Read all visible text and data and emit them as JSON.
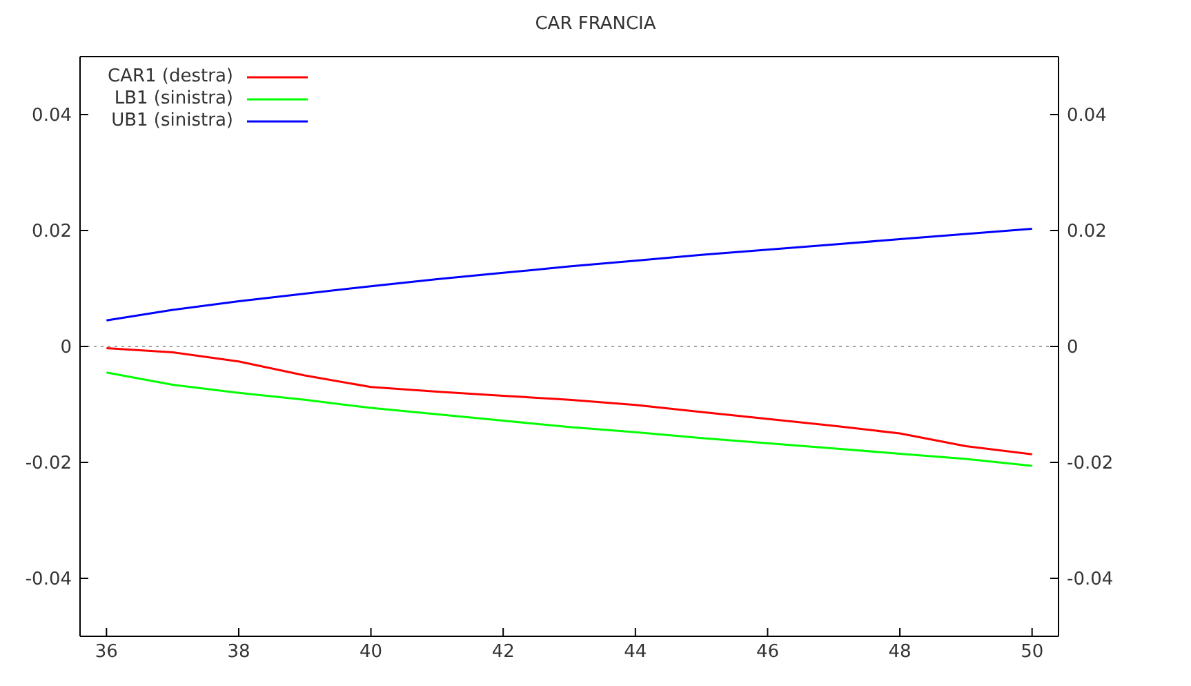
{
  "chart_data": {
    "type": "line",
    "title": "CAR FRANCIA",
    "x": [
      36,
      37,
      38,
      39,
      40,
      41,
      42,
      43,
      44,
      45,
      46,
      47,
      48,
      49,
      50
    ],
    "series": [
      {
        "name": "CAR1 (destra)",
        "color": "#ff0000",
        "values": [
          -0.0003,
          -0.001,
          -0.0026,
          -0.005,
          -0.007,
          -0.0078,
          -0.0085,
          -0.0092,
          -0.0101,
          -0.0113,
          -0.0125,
          -0.0137,
          -0.015,
          -0.0172,
          -0.0186
        ]
      },
      {
        "name": "LB1 (sinistra)",
        "color": "#00ff00",
        "values": [
          -0.0045,
          -0.0066,
          -0.008,
          -0.0092,
          -0.0106,
          -0.0117,
          -0.0128,
          -0.0139,
          -0.0148,
          -0.0158,
          -0.0167,
          -0.0176,
          -0.0185,
          -0.0194,
          -0.0206
        ]
      },
      {
        "name": "UB1 (sinistra)",
        "color": "#0000ff",
        "values": [
          0.0045,
          0.0063,
          0.0078,
          0.0091,
          0.0104,
          0.0116,
          0.0127,
          0.0138,
          0.0148,
          0.0158,
          0.0167,
          0.0176,
          0.0185,
          0.0194,
          0.0203
        ]
      }
    ],
    "xlim": [
      35.6,
      50.4
    ],
    "xticks": [
      36,
      38,
      40,
      42,
      44,
      46,
      48,
      50
    ],
    "ylim": [
      -0.05,
      0.05
    ],
    "yticks": [
      -0.04,
      -0.02,
      0,
      0.02,
      0.04
    ],
    "y2lim": [
      -0.05,
      0.05
    ],
    "y2ticks": [
      -0.04,
      -0.02,
      0,
      0.02,
      0.04
    ],
    "ref_lines": [
      {
        "axis": "y",
        "value": 0,
        "color": "#a0a0a0",
        "line_style": "dotted"
      }
    ],
    "legend": "top left",
    "marker": "none",
    "line_style": "solid"
  }
}
